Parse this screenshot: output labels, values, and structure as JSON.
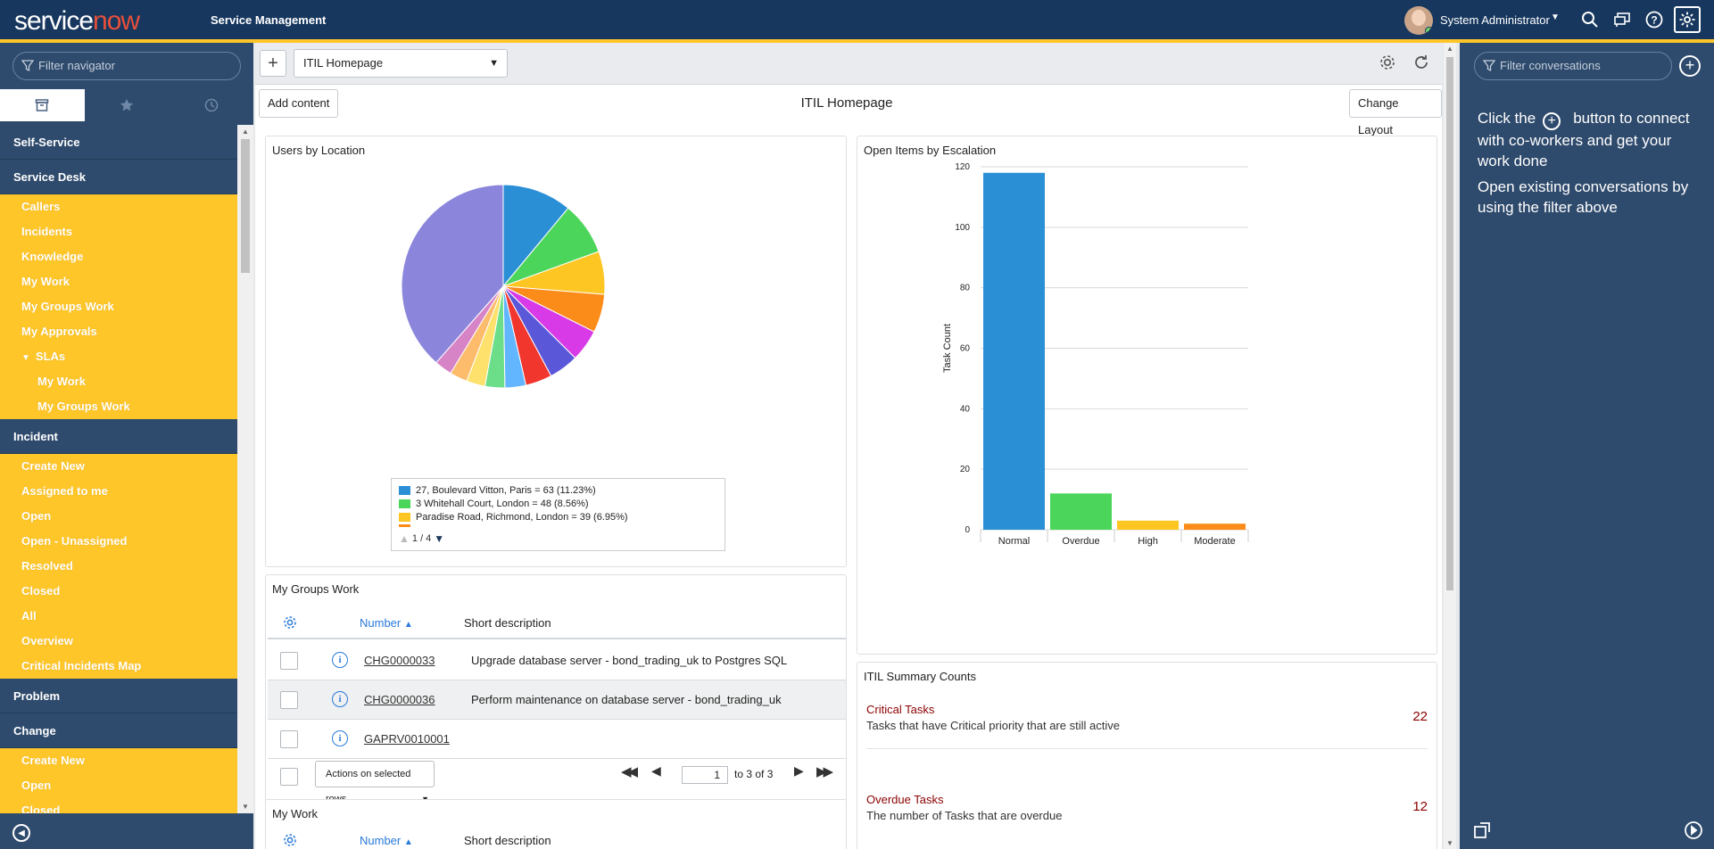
{
  "header": {
    "logo_service": "service",
    "logo_now": "now",
    "app_title": "Service Management",
    "user_name": "System Administrator"
  },
  "nav": {
    "filter_placeholder": "Filter navigator",
    "items": [
      {
        "type": "section",
        "label": "Self-Service"
      },
      {
        "type": "section",
        "label": "Service Desk"
      },
      {
        "type": "item",
        "label": "Callers"
      },
      {
        "type": "item",
        "label": "Incidents"
      },
      {
        "type": "item",
        "label": "Knowledge"
      },
      {
        "type": "item",
        "label": "My Work"
      },
      {
        "type": "item",
        "label": "My Groups Work"
      },
      {
        "type": "item",
        "label": "My Approvals"
      },
      {
        "type": "item",
        "label": "SLAs",
        "expanded": true
      },
      {
        "type": "sub",
        "label": "My Work"
      },
      {
        "type": "sub",
        "label": "My Groups Work"
      },
      {
        "type": "section",
        "label": "Incident"
      },
      {
        "type": "item",
        "label": "Create New"
      },
      {
        "type": "item",
        "label": "Assigned to me"
      },
      {
        "type": "item",
        "label": "Open"
      },
      {
        "type": "item",
        "label": "Open - Unassigned"
      },
      {
        "type": "item",
        "label": "Resolved"
      },
      {
        "type": "item",
        "label": "Closed"
      },
      {
        "type": "item",
        "label": "All"
      },
      {
        "type": "item",
        "label": "Overview"
      },
      {
        "type": "item",
        "label": "Critical Incidents Map"
      },
      {
        "type": "section",
        "label": "Problem"
      },
      {
        "type": "section",
        "label": "Change"
      },
      {
        "type": "item",
        "label": "Create New"
      },
      {
        "type": "item",
        "label": "Open"
      },
      {
        "type": "item",
        "label": "Closed"
      }
    ]
  },
  "toolbar": {
    "page_select": "ITIL Homepage"
  },
  "page": {
    "add_content": "Add content",
    "title": "ITIL Homepage",
    "change_layout": "Change Layout"
  },
  "users_by_location": {
    "title": "Users by Location",
    "legend": [
      {
        "label": "27, Boulevard Vitton, Paris = 63 (11.23%)",
        "color": "#2b8fd6"
      },
      {
        "label": "3 Whitehall Court, London = 48 (8.56%)",
        "color": "#4cd55b"
      },
      {
        "label": "Paradise Road, Richmond, London = 39 (6.95%)",
        "color": "#fdc623"
      }
    ],
    "pager": "1 / 4"
  },
  "chart_data": [
    {
      "type": "pie",
      "title": "Users by Location",
      "slices": [
        {
          "label": "27, Boulevard Vitton, Paris",
          "value": 63,
          "color": "#2b8fd6"
        },
        {
          "label": "3 Whitehall Court, London",
          "value": 48,
          "color": "#4cd55b"
        },
        {
          "label": "Paradise Road, Richmond, London",
          "value": 39,
          "color": "#fdc623"
        },
        {
          "label": "",
          "value": 35,
          "color": "#fc8c1a"
        },
        {
          "label": "",
          "value": 29,
          "color": "#d73ae6"
        },
        {
          "label": "",
          "value": 27,
          "color": "#5a58d9"
        },
        {
          "label": "",
          "value": 24,
          "color": "#f1362d"
        },
        {
          "label": "",
          "value": 19,
          "color": "#61b6ff"
        },
        {
          "label": "",
          "value": 18,
          "color": "#6cde89"
        },
        {
          "label": "",
          "value": 17,
          "color": "#fde16c"
        },
        {
          "label": "",
          "value": 16,
          "color": "#fdbb6c"
        },
        {
          "label": "",
          "value": 16,
          "color": "#d784c7"
        },
        {
          "label": "",
          "value": 220,
          "color": "#8b86dc"
        }
      ]
    },
    {
      "type": "bar",
      "title": "Open Items by Escalation",
      "categories": [
        "Normal",
        "Overdue",
        "High",
        "Moderate"
      ],
      "values": [
        118,
        12,
        3,
        2
      ],
      "colors": [
        "#2b8fd6",
        "#4cd55b",
        "#fdc623",
        "#fc8c1a"
      ],
      "ylabel": "Task Count",
      "ylim": [
        0,
        120
      ],
      "yticks": [
        0,
        20,
        40,
        60,
        80,
        100,
        120
      ],
      "grid": true
    }
  ],
  "open_items": {
    "title": "Open Items by Escalation"
  },
  "my_groups_work": {
    "title": "My Groups Work",
    "col_number": "Number",
    "col_desc": "Short description",
    "rows": [
      {
        "number": "CHG0000033",
        "desc": "Upgrade database server - bond_trading_uk to Postgres SQL"
      },
      {
        "number": "CHG0000036",
        "desc": "Perform maintenance on database server - bond_trading_uk"
      },
      {
        "number": "GAPRV0010001",
        "desc": ""
      }
    ],
    "actions": "Actions on selected rows...",
    "page": "1",
    "page_of": "to 3 of 3"
  },
  "my_work": {
    "title": "My Work",
    "col_number": "Number",
    "col_desc": "Short description"
  },
  "summary": {
    "title": "ITIL Summary Counts",
    "items": [
      {
        "title": "Critical Tasks",
        "desc": "Tasks that have Critical priority that are still active",
        "value": "22"
      },
      {
        "title": "Overdue Tasks",
        "desc": "The number of Tasks that are overdue",
        "value": "12"
      }
    ]
  },
  "conversations": {
    "filter_placeholder": "Filter conversations",
    "help_1a": "Click the",
    "help_1b": "button to connect with co-workers and get your work done",
    "help_2": "Open existing conversations by using the filter above"
  }
}
